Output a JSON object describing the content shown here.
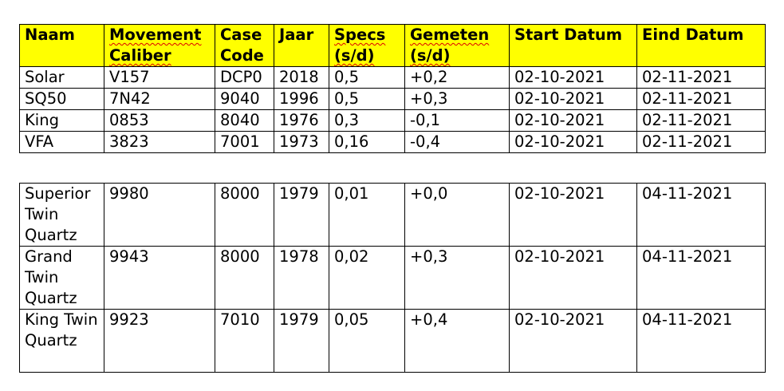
{
  "table1": {
    "header": [
      "Naam",
      "Movement Caliber",
      "Case Code",
      "Jaar",
      "Specs (s/d)",
      "Gemeten (s/d)",
      "Start Datum",
      "Eind Datum"
    ],
    "rows": [
      [
        "Solar",
        "V157",
        "DCP0",
        "2018",
        "0,5",
        "+0,2",
        "02-10-2021",
        "02-11-2021"
      ],
      [
        "SQ50",
        "7N42",
        "9040",
        "1996",
        "0,5",
        "+0,3",
        "02-10-2021",
        "02-11-2021"
      ],
      [
        "King",
        "0853",
        "8040",
        "1976",
        "0,3",
        "-0,1",
        "02-10-2021",
        "02-11-2021"
      ],
      [
        "VFA",
        "3823",
        "7001",
        "1973",
        "0,16",
        "-0,4",
        "02-10-2021",
        "02-11-2021"
      ]
    ]
  },
  "table2": {
    "rows": [
      [
        "Superior Twin Quartz",
        "9980",
        "8000",
        "1979",
        "0,01",
        "+0,0",
        "02-10-2021",
        "04-11-2021"
      ],
      [
        "Grand Twin Quartz",
        "9943",
        "8000",
        "1978",
        "0,02",
        "+0,3",
        "02-10-2021",
        "04-11-2021"
      ],
      [
        "King Twin Quartz",
        "9923",
        "7010",
        "1979",
        "0,05",
        "+0,4",
        "02-10-2021",
        "04-11-2021"
      ]
    ]
  }
}
